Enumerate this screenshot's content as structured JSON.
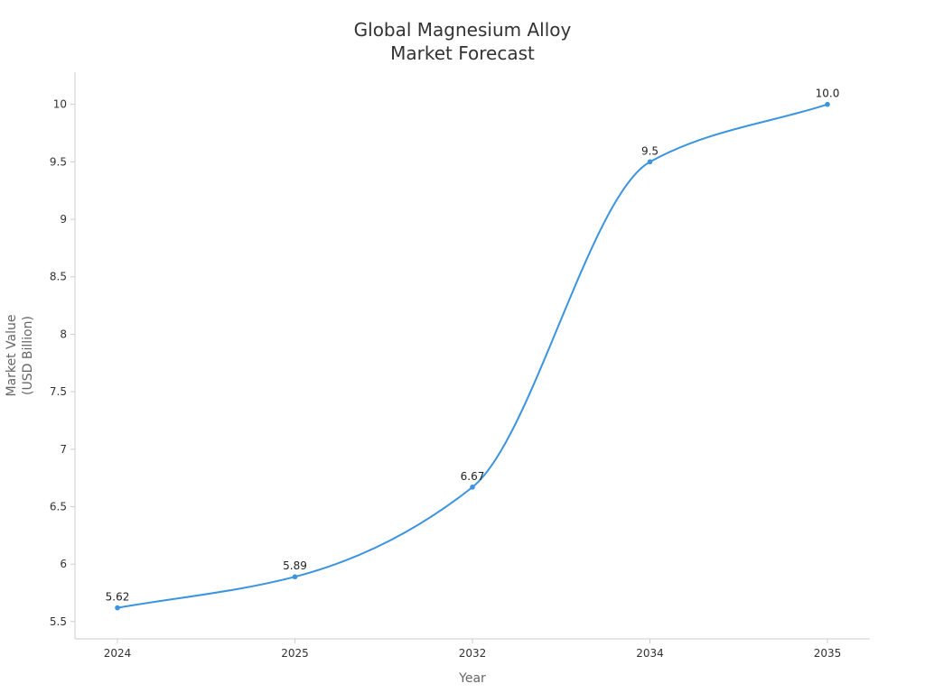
{
  "chart_data": {
    "type": "line",
    "title_lines": [
      "Global Magnesium Alloy",
      "Market Forecast"
    ],
    "xlabel": "Year",
    "ylabel_lines": [
      "Market Value",
      "(USD Billion)"
    ],
    "categories": [
      "2024",
      "2025",
      "2032",
      "2034",
      "2035"
    ],
    "values": [
      5.62,
      5.89,
      6.67,
      9.5,
      10.0
    ],
    "data_labels": [
      "5.62",
      "5.89",
      "6.67",
      "9.5",
      "10.0"
    ],
    "yticks": [
      5.5,
      6,
      6.5,
      7,
      7.5,
      8,
      8.5,
      9,
      9.5,
      10
    ],
    "ytick_labels": [
      "5.5",
      "6",
      "6.5",
      "7",
      "7.5",
      "8",
      "8.5",
      "9",
      "9.5",
      "10"
    ],
    "ylim": [
      5.35,
      10.28
    ],
    "grid": false,
    "line_color": "#3b94e0",
    "axis_color": "#cccccc"
  }
}
